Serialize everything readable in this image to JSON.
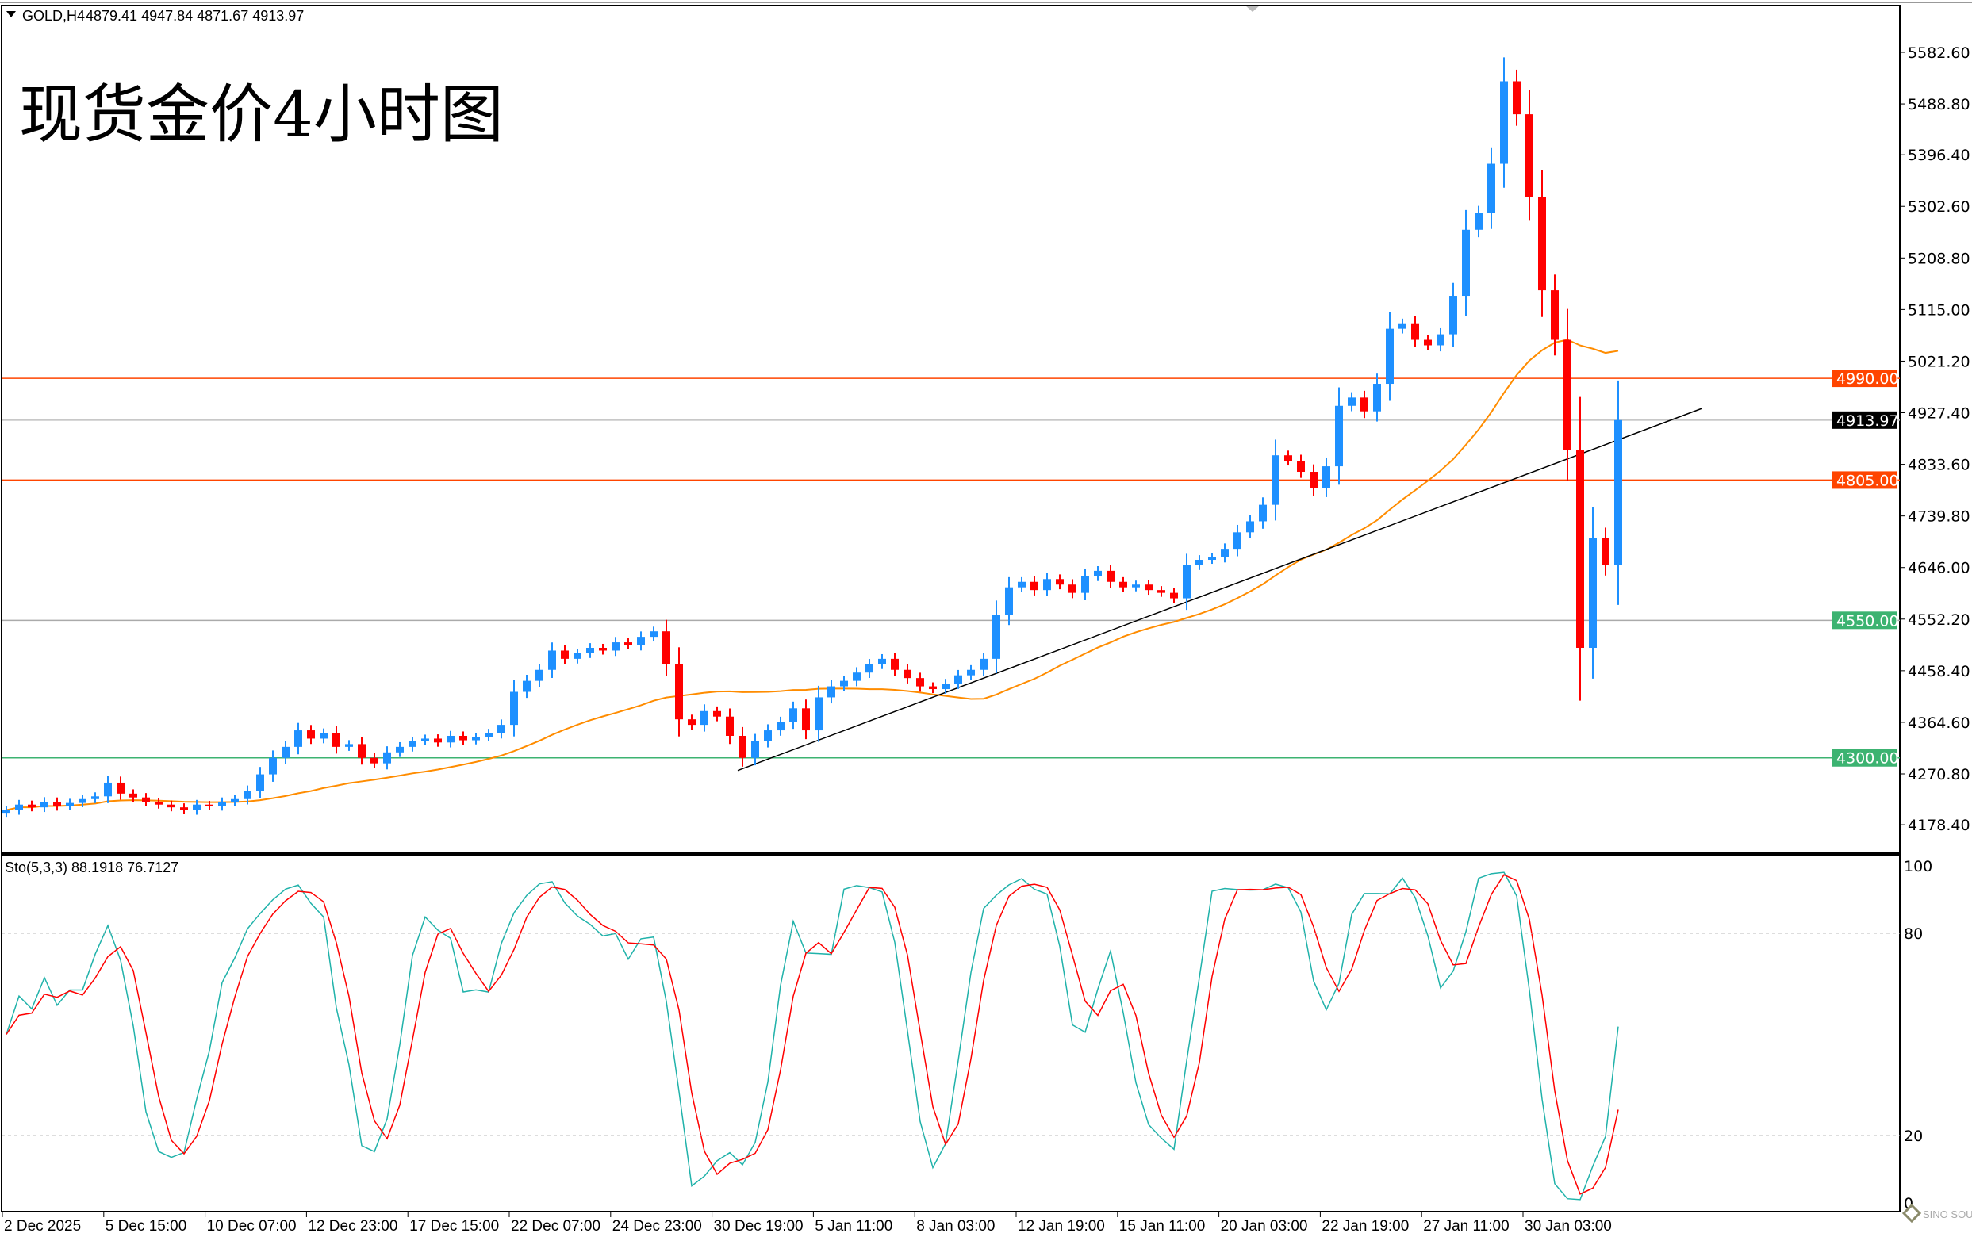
{
  "header": {
    "symbol": "GOLD,H4",
    "ohlc": "4879.41 4947.84 4871.67 4913.97"
  },
  "overlay_title": "现货金价4小时图",
  "colors": {
    "bull": "#1e90ff",
    "bear": "#ff0000",
    "ma": "#ff8c00",
    "resistance": "#ff4500",
    "support": "#3cb371",
    "stoch_main": "#20b2aa",
    "stoch_signal": "#ff0000"
  },
  "chart_data": [
    {
      "type": "candlestick",
      "title": "",
      "price_ticks": [
        "5582.60",
        "5488.80",
        "5396.40",
        "5302.60",
        "5208.80",
        "5115.00",
        "5021.20",
        "4927.40",
        "4833.60",
        "4739.80",
        "4646.00",
        "4552.20",
        "4458.40",
        "4364.60",
        "4270.80",
        "4178.40"
      ],
      "ylim": [
        4178.4,
        5582.6
      ],
      "time_labels": [
        "2 Dec 2025",
        "5 Dec 15:00",
        "10 Dec 07:00",
        "12 Dec 23:00",
        "17 Dec 15:00",
        "22 Dec 07:00",
        "24 Dec 23:00",
        "30 Dec 19:00",
        "5 Jan 11:00",
        "8 Jan 03:00",
        "12 Jan 19:00",
        "15 Jan 11:00",
        "20 Jan 03:00",
        "22 Jan 19:00",
        "27 Jan 11:00",
        "30 Jan 03:00"
      ],
      "closes": [
        4205,
        4215,
        4210,
        4220,
        4212,
        4218,
        4225,
        4230,
        4255,
        4235,
        4228,
        4220,
        4215,
        4210,
        4205,
        4215,
        4212,
        4220,
        4225,
        4240,
        4270,
        4300,
        4320,
        4350,
        4335,
        4345,
        4320,
        4325,
        4300,
        4290,
        4310,
        4320,
        4330,
        4335,
        4328,
        4340,
        4332,
        4338,
        4345,
        4360,
        4420,
        4440,
        4460,
        4495,
        4480,
        4490,
        4500,
        4495,
        4510,
        4505,
        4520,
        4530,
        4470,
        4370,
        4360,
        4385,
        4375,
        4340,
        4300,
        4330,
        4350,
        4365,
        4390,
        4350,
        4410,
        4430,
        4440,
        4455,
        4470,
        4480,
        4460,
        4445,
        4430,
        4425,
        4435,
        4450,
        4460,
        4480,
        4560,
        4610,
        4620,
        4605,
        4625,
        4615,
        4600,
        4630,
        4640,
        4620,
        4610,
        4615,
        4605,
        4600,
        4590,
        4650,
        4660,
        4665,
        4680,
        4710,
        4730,
        4760,
        4850,
        4840,
        4820,
        4790,
        4830,
        4940,
        4955,
        4930,
        4980,
        5080,
        5090,
        5060,
        5050,
        5070,
        5140,
        5260,
        5290,
        5380,
        5530,
        5470,
        5320,
        5150,
        5060,
        4860,
        4500,
        4700,
        4650,
        4913.97
      ],
      "moving_average": {
        "color": "orange"
      },
      "current_price": "4913.97",
      "levels": [
        {
          "price": 4990.0,
          "label": "4990.00",
          "kind": "resistance"
        },
        {
          "price": 4805.0,
          "label": "4805.00",
          "kind": "resistance"
        },
        {
          "price": 4550.0,
          "label": "4550.00",
          "kind": "support-grey"
        },
        {
          "price": 4300.0,
          "label": "4300.00",
          "kind": "support"
        }
      ],
      "trendline": {
        "start_price": 4277,
        "end_price": 4935
      }
    },
    {
      "type": "line",
      "title": "Sto(5,3,3) 88.1918 76.7127",
      "ticks": [
        "100",
        "80",
        "20",
        "0"
      ],
      "ylim": [
        0,
        100
      ],
      "levels": [
        80,
        20
      ],
      "params": [
        5,
        3,
        3
      ],
      "series": [
        {
          "role": "main"
        },
        {
          "role": "signal"
        }
      ]
    }
  ],
  "watermark": "SINO SOUND"
}
